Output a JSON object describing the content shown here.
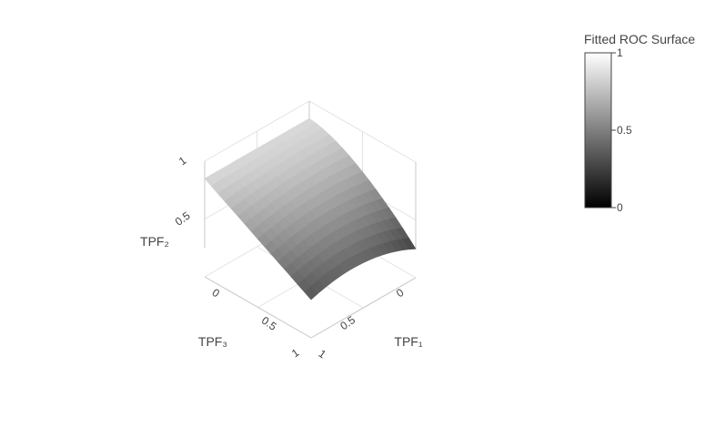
{
  "chart_data": {
    "type": "surface",
    "title": "",
    "colorscale": [
      "#000000",
      "#ffffff"
    ],
    "axes": {
      "x": {
        "title": "TPF₁",
        "range": [
          0,
          1
        ],
        "ticks": [
          "0",
          "0.5",
          "1"
        ]
      },
      "y": {
        "title": "TPF₃",
        "range": [
          0,
          1
        ],
        "ticks": [
          "0",
          "0.5",
          "1"
        ]
      },
      "z": {
        "title": "TPF₂",
        "range": [
          0,
          1
        ],
        "ticks": [
          "0.5",
          "1"
        ]
      }
    },
    "grid": true,
    "surface": {
      "x": [
        0,
        0.1,
        0.2,
        0.3,
        0.4,
        0.5,
        0.6,
        0.7,
        0.8,
        0.9,
        1.0
      ],
      "y": [
        0,
        0.1,
        0.2,
        0.3,
        0.4,
        0.5,
        0.6,
        0.7,
        0.8,
        0.9,
        1.0
      ],
      "z_formula": "TPF₂ decreases from near 1 (light) at TPF₁=0 and TPF₃=0 toward 0 (dark) as TPF₁ and TPF₃ approach 1"
    },
    "colorbar": {
      "title": "Fitted ROC Surface",
      "ticks": [
        "0",
        "0.5",
        "1"
      ],
      "range": [
        0,
        1
      ],
      "placement": "right"
    }
  }
}
